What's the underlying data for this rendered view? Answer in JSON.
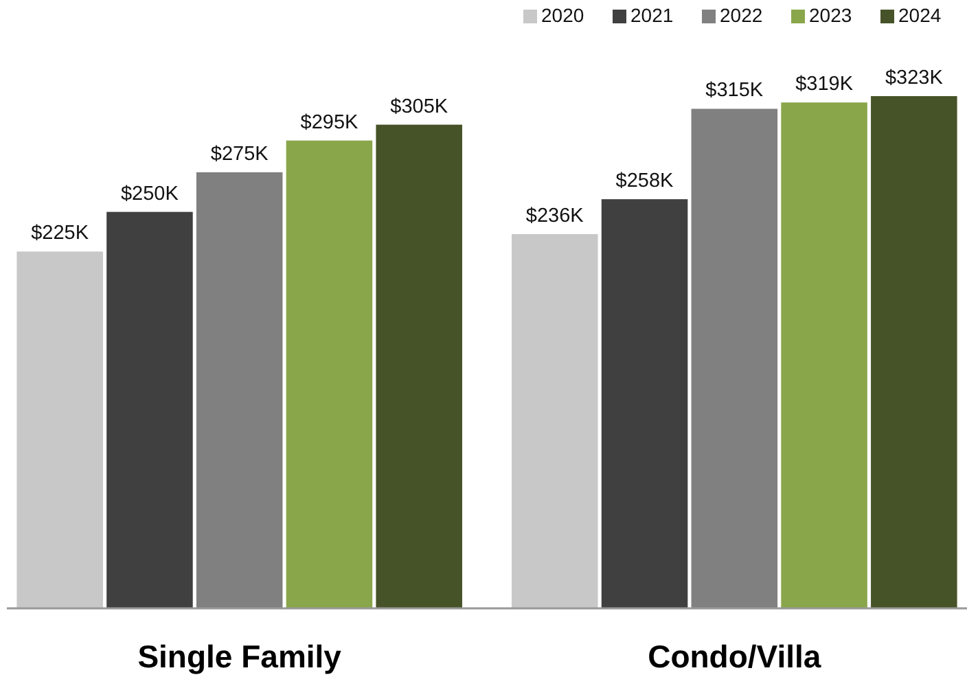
{
  "chart_data": {
    "type": "bar",
    "categories": [
      "Single Family",
      "Condo/Villa"
    ],
    "legend": "top right",
    "series": [
      {
        "name": "2020",
        "color": "#c8c8c8",
        "values": [
          225,
          236
        ],
        "value_labels": [
          "$225K",
          "$236K"
        ]
      },
      {
        "name": "2021",
        "color": "#404040",
        "values": [
          250,
          258
        ],
        "value_labels": [
          "$250K",
          "$258K"
        ]
      },
      {
        "name": "2022",
        "color": "#808080",
        "values": [
          275,
          315
        ],
        "value_labels": [
          "$275K",
          "$315K"
        ]
      },
      {
        "name": "2023",
        "color": "#8aa64b",
        "values": [
          295,
          319
        ],
        "value_labels": [
          "$295K",
          "$319K"
        ]
      },
      {
        "name": "2024",
        "color": "#465227",
        "values": [
          305,
          323
        ],
        "value_labels": [
          "$305K",
          "$323K"
        ]
      }
    ],
    "ylim": [
      0,
      323
    ]
  }
}
